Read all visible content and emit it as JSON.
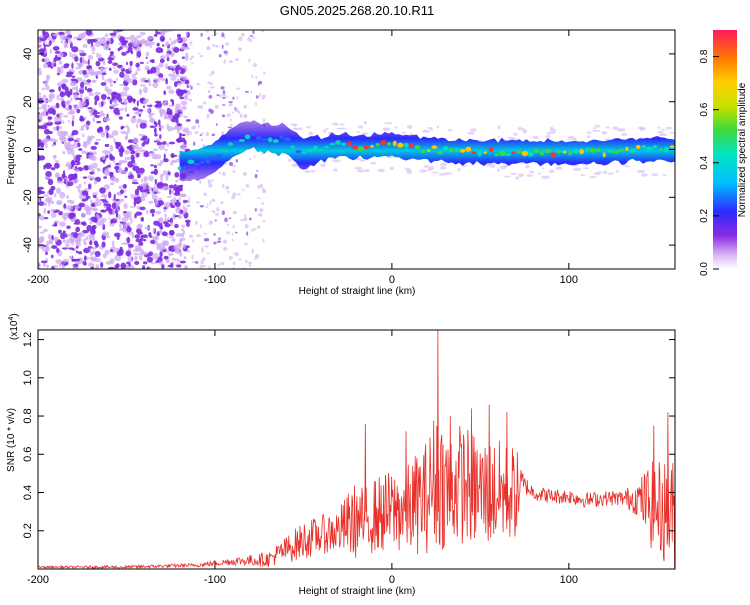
{
  "figure_title": "GN05.2025.268.20.10.R11",
  "colors": {
    "snr_line": "#e8302a",
    "axis": "#000000",
    "spectrogram_background": "#ffffff"
  },
  "chart_data": [
    {
      "type": "heatmap",
      "title": "GN05.2025.268.20.10.R11",
      "xlabel": "Height of straight line (km)",
      "ylabel": "Frequency (Hz)",
      "xlim": [
        -200,
        160
      ],
      "ylim": [
        -50,
        50
      ],
      "x_ticks": [
        -200,
        -100,
        0,
        100
      ],
      "y_ticks": [
        -40,
        -20,
        0,
        20,
        40
      ],
      "colorbar": {
        "label": "Normalized spectral amplitude",
        "range": [
          0.0,
          0.9
        ],
        "ticks": [
          0.0,
          0.2,
          0.4,
          0.6,
          0.8
        ],
        "tick_labels": [
          "0.0",
          "0.2",
          "0.4",
          "0.6",
          "0.8"
        ],
        "colormap": "rainbow"
      },
      "features": {
        "noise_region_x": [
          -200,
          -115
        ],
        "sparse_noise_x": [
          -115,
          -72
        ],
        "signal_band_center_hz": [
          {
            "x": -120,
            "y": -7
          },
          {
            "x": -110,
            "y": -6
          },
          {
            "x": -100,
            "y": -3
          },
          {
            "x": -90,
            "y": 3
          },
          {
            "x": -80,
            "y": 6
          },
          {
            "x": -70,
            "y": 5
          },
          {
            "x": -60,
            "y": 4
          },
          {
            "x": -50,
            "y": -2
          },
          {
            "x": -40,
            "y": 0
          },
          {
            "x": -30,
            "y": 2
          },
          {
            "x": -20,
            "y": 1
          },
          {
            "x": 0,
            "y": 2
          },
          {
            "x": 20,
            "y": 0
          },
          {
            "x": 40,
            "y": -1
          },
          {
            "x": 60,
            "y": -1
          },
          {
            "x": 80,
            "y": -1
          },
          {
            "x": 100,
            "y": -1
          },
          {
            "x": 120,
            "y": -1
          },
          {
            "x": 140,
            "y": 0
          },
          {
            "x": 160,
            "y": 0
          }
        ],
        "peak_amplitude_x": [
          -30,
          160
        ]
      }
    },
    {
      "type": "line",
      "title": "",
      "xlabel": "Height of straight line (km)",
      "ylabel": "SNR (10 * v/v)",
      "y_multiplier": "(x10",
      "y_multiplier_exp": "4",
      "y_multiplier_close": ")",
      "xlim": [
        -200,
        160
      ],
      "ylim": [
        0,
        1.25
      ],
      "x_ticks": [
        -200,
        -100,
        0,
        100
      ],
      "y_ticks": [
        0.2,
        0.4,
        0.6,
        0.8,
        1.0,
        1.2
      ],
      "series": [
        {
          "name": "SNR",
          "envelope": {
            "x": [
              -200,
              -150,
              -110,
              -90,
              -70,
              -60,
              -50,
              -40,
              -30,
              -22,
              -15,
              -10,
              0,
              10,
              20,
              26,
              30,
              40,
              50,
              60,
              70,
              75,
              80,
              90,
              100,
              110,
              120,
              130,
              140,
              145,
              150,
              155,
              160
            ],
            "center": [
              0.01,
              0.01,
              0.02,
              0.04,
              0.05,
              0.1,
              0.15,
              0.18,
              0.2,
              0.25,
              0.25,
              0.28,
              0.3,
              0.32,
              0.38,
              0.5,
              0.42,
              0.45,
              0.4,
              0.4,
              0.4,
              0.44,
              0.4,
              0.38,
              0.38,
              0.36,
              0.37,
              0.37,
              0.37,
              0.34,
              0.32,
              0.3,
              0.28
            ],
            "spread": [
              0.005,
              0.008,
              0.01,
              0.02,
              0.04,
              0.07,
              0.1,
              0.1,
              0.12,
              0.2,
              0.18,
              0.2,
              0.22,
              0.25,
              0.3,
              0.4,
              0.32,
              0.32,
              0.3,
              0.28,
              0.25,
              0.05,
              0.04,
              0.04,
              0.04,
              0.04,
              0.04,
              0.04,
              0.1,
              0.22,
              0.25,
              0.28,
              0.3
            ]
          },
          "spikes": [
            {
              "x": -15,
              "y": 0.76
            },
            {
              "x": 8,
              "y": 0.72
            },
            {
              "x": 26,
              "y": 1.25
            },
            {
              "x": 33,
              "y": 0.8
            },
            {
              "x": 45,
              "y": 0.84
            },
            {
              "x": 55,
              "y": 0.86
            },
            {
              "x": 65,
              "y": 0.82
            },
            {
              "x": 148,
              "y": 0.75
            },
            {
              "x": 156,
              "y": 0.82
            }
          ]
        }
      ]
    }
  ]
}
